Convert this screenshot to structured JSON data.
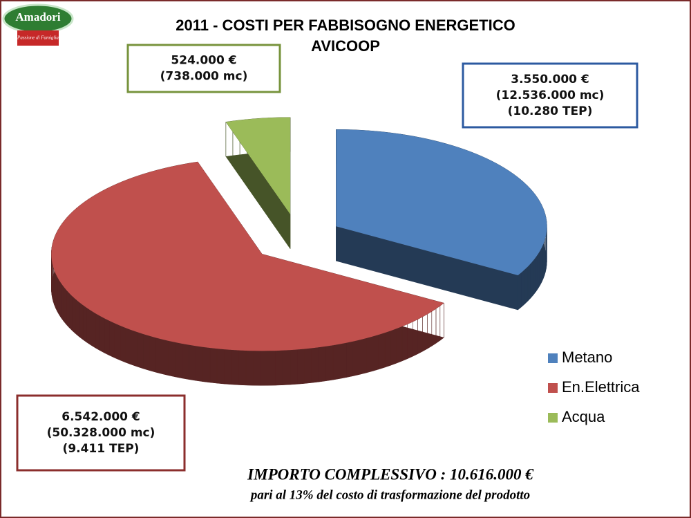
{
  "logo": {
    "name": "Amadori",
    "tagline": "Passione di Famiglia"
  },
  "chart_data": {
    "type": "pie",
    "title": "2011 - COSTI PER FABBISOGNO ENERGETICO",
    "subtitle": "AVICOOP",
    "categories": [
      "Metano",
      "En.Elettrica",
      "Acqua"
    ],
    "values": [
      3550000,
      6542000,
      524000
    ],
    "value_labels": [
      "3.550.000 €",
      "6.542.000 €",
      "524.000 €"
    ],
    "details": [
      [
        "(12.536.000 mc)",
        "(10.280 TEP)"
      ],
      [
        "(50.328.000 mc)",
        "(9.411 TEP)"
      ],
      [
        "(738.000 mc)"
      ]
    ],
    "colors": [
      "#4f81bd",
      "#c0504d",
      "#9bbb59"
    ],
    "exploded": true,
    "legend": "right"
  },
  "footer": {
    "total": "IMPORTO COMPLESSIVO : 10.616.000 €",
    "note": "pari al 13% del costo di trasformazione del prodotto"
  }
}
